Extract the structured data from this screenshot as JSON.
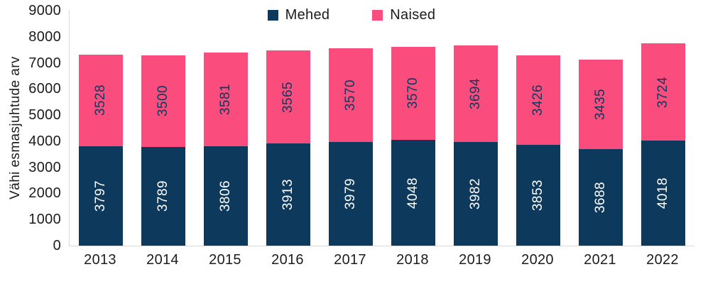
{
  "chart_data": {
    "type": "bar",
    "stacked": true,
    "title": "",
    "xlabel": "",
    "ylabel": "Vähi esmasjuhtude arv",
    "categories": [
      "2013",
      "2014",
      "2015",
      "2016",
      "2017",
      "2018",
      "2019",
      "2020",
      "2021",
      "2022"
    ],
    "series": [
      {
        "name": "Mehed",
        "color": "#0d3a5c",
        "label_color": "#ffffff",
        "values": [
          3797,
          3789,
          3806,
          3913,
          3979,
          4048,
          3982,
          3853,
          3688,
          4018
        ]
      },
      {
        "name": "Naised",
        "color": "#fa4d7d",
        "label_color": "#0d3a5c",
        "values": [
          3528,
          3500,
          3581,
          3565,
          3570,
          3570,
          3694,
          3426,
          3435,
          3724
        ]
      }
    ],
    "ylim": [
      0,
      9000
    ],
    "ytick_step": 1000,
    "grid": false,
    "legend_position": "top-center",
    "value_labels": "inside-rotated-90"
  },
  "style": {
    "text_color": "#1c1c1c",
    "axis_line_color": "#d9d9d9",
    "background": "#ffffff"
  }
}
